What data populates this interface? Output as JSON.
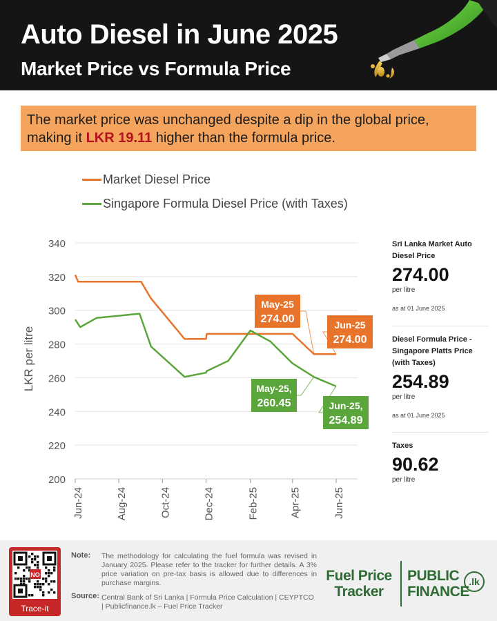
{
  "header": {
    "title": "Auto Diesel in June 2025",
    "subtitle": "Market Price vs Formula Price"
  },
  "callout": {
    "text_before": "The market price was unchanged despite a dip in the global price, making it ",
    "highlight": "LKR 19.11",
    "text_after": " higher than the formula price."
  },
  "panel": {
    "market": {
      "label": "Sri Lanka Market Auto Diesel Price",
      "value": "274.00",
      "unit": "per litre",
      "date": "as at 01 June 2025"
    },
    "formula": {
      "label": "Diesel Formula Price - Singapore Platts Price (with Taxes)",
      "value": "254.89",
      "unit": "per litre",
      "date": "as at 01 June 2025"
    },
    "taxes": {
      "label": "Taxes",
      "value": "90.62",
      "unit": "per litre"
    }
  },
  "chart_data": {
    "type": "line",
    "title": "Auto Diesel in June 2025",
    "subtitle": "Market Price vs Formula Price",
    "ylabel": "LKR per litre",
    "xlabel": "",
    "ylim": [
      200,
      340
    ],
    "yticks": [
      200,
      220,
      240,
      260,
      280,
      300,
      320,
      340
    ],
    "xlim": [
      "2024-06-01",
      "2025-07-01"
    ],
    "xticks": [
      {
        "date": "2024-06-01",
        "label": "Jun-24"
      },
      {
        "date": "2024-08-01",
        "label": "Aug-24"
      },
      {
        "date": "2024-10-01",
        "label": "Oct-24"
      },
      {
        "date": "2024-12-01",
        "label": "Dec-24"
      },
      {
        "date": "2025-02-01",
        "label": "Feb-25"
      },
      {
        "date": "2025-04-01",
        "label": "Apr-25"
      },
      {
        "date": "2025-06-01",
        "label": "Jun-25"
      }
    ],
    "grid": true,
    "legend": "top-left",
    "series": [
      {
        "name": "Market Diesel Price",
        "color": "#e8742c",
        "points": [
          {
            "x": "2024-06-01",
            "y": 321
          },
          {
            "x": "2024-06-05",
            "y": 317
          },
          {
            "x": "2024-09-01",
            "y": 317
          },
          {
            "x": "2024-09-15",
            "y": 307
          },
          {
            "x": "2024-11-01",
            "y": 283
          },
          {
            "x": "2024-12-01",
            "y": 283
          },
          {
            "x": "2024-12-02",
            "y": 286
          },
          {
            "x": "2025-04-01",
            "y": 286
          },
          {
            "x": "2025-05-01",
            "y": 274
          },
          {
            "x": "2025-06-01",
            "y": 274
          }
        ]
      },
      {
        "name": "Singapore Formula Diesel Price (with Taxes)",
        "color": "#5aa63a",
        "points": [
          {
            "x": "2024-06-01",
            "y": 294.5
          },
          {
            "x": "2024-06-08",
            "y": 290
          },
          {
            "x": "2024-07-01",
            "y": 295.5
          },
          {
            "x": "2024-08-30",
            "y": 298
          },
          {
            "x": "2024-09-15",
            "y": 278.5
          },
          {
            "x": "2024-11-01",
            "y": 260.5
          },
          {
            "x": "2024-12-01",
            "y": 263
          },
          {
            "x": "2024-12-02",
            "y": 264
          },
          {
            "x": "2025-01-01",
            "y": 270
          },
          {
            "x": "2025-02-01",
            "y": 288
          },
          {
            "x": "2025-03-01",
            "y": 281.5
          },
          {
            "x": "2025-04-01",
            "y": 268.5
          },
          {
            "x": "2025-05-01",
            "y": 260.45
          },
          {
            "x": "2025-06-01",
            "y": 254.89
          }
        ]
      }
    ],
    "annotations": [
      {
        "label": "May-25",
        "value": "274.00",
        "series": "Market Diesel Price",
        "x": "2025-05-01",
        "y": 274
      },
      {
        "label": "Jun-25",
        "value": "274.00",
        "series": "Market Diesel Price",
        "x": "2025-06-01",
        "y": 274
      },
      {
        "label": "May-25,",
        "value": "260.45",
        "series": "Singapore Formula Diesel Price (with Taxes)",
        "x": "2025-05-01",
        "y": 260.45
      },
      {
        "label": "Jun-25,",
        "value": "254.89",
        "series": "Singapore Formula Diesel Price (with Taxes)",
        "x": "2025-06-01",
        "y": 254.89
      }
    ]
  },
  "footer": {
    "qr_caption": "Trace-it",
    "qr_logo": "NO",
    "note_label": "Note:",
    "note_text": "The methodology for calculating the fuel formula was revised in January 2025. Please refer to the tracker for further details. A 3% price variation on pre-tax basis is allowed due to differences in purchase margins.",
    "source_label": "Source:",
    "source_text": "Central Bank of Sri Lanka | Formula Price Calculation | CEYPTCO | Publicfinance.lk – Fuel Price Tracker",
    "brand1_line1": "Fuel Price",
    "brand1_line2": "Tracker",
    "brand2_line1": "PUBLIC",
    "brand2_line2": "FINANCE",
    "brand2_lk": ".lk",
    "icons": [
      "qr-code-icon",
      "fuel-nozzle-icon"
    ]
  }
}
